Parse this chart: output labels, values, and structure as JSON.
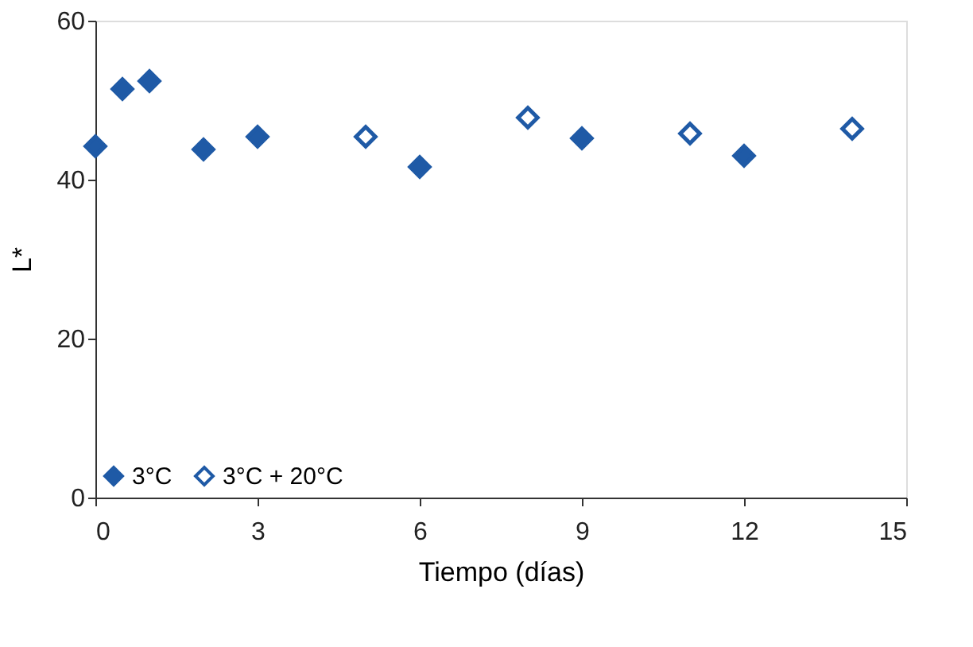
{
  "chart_data": {
    "type": "scatter",
    "xlabel": "Tiempo (días)",
    "ylabel": "L*",
    "xlim": [
      0,
      15
    ],
    "xticks": [
      0,
      3,
      6,
      9,
      12,
      15
    ],
    "ylim": [
      0,
      60
    ],
    "yticks": [
      0,
      20,
      40,
      60
    ],
    "grid": false,
    "legend": "bottom left",
    "marker": "diamond",
    "series": [
      {
        "name": "3°C",
        "color": "#1f5aa6",
        "x": [
          0,
          0.5,
          1,
          2,
          3,
          6,
          9,
          12
        ],
        "values": [
          44.2,
          51.4,
          52.4,
          43.8,
          45.4,
          41.6,
          45.2,
          43
        ]
      },
      {
        "name": "3°C + 20°C",
        "color": "#1f5aa6",
        "x": [
          5,
          8,
          11,
          14
        ],
        "values": [
          45.4,
          47.8,
          45.8,
          46.4
        ]
      }
    ]
  }
}
